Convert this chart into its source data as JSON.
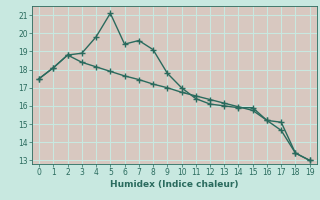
{
  "xlabel": "Humidex (Indice chaleur)",
  "x": [
    0,
    1,
    2,
    3,
    4,
    5,
    6,
    7,
    8,
    9,
    10,
    11,
    12,
    13,
    14,
    15,
    16,
    17,
    18,
    19
  ],
  "line1": [
    17.5,
    18.1,
    18.8,
    18.9,
    19.8,
    21.1,
    19.4,
    19.6,
    19.1,
    17.8,
    17.0,
    16.4,
    16.1,
    16.0,
    15.9,
    15.9,
    15.2,
    15.1,
    13.4,
    13.0
  ],
  "line2": [
    17.5,
    18.1,
    18.8,
    18.4,
    18.15,
    17.9,
    17.65,
    17.45,
    17.2,
    17.0,
    16.75,
    16.55,
    16.35,
    16.15,
    15.95,
    15.75,
    15.2,
    14.65,
    13.4,
    13.0
  ],
  "line_color": "#2a6b5e",
  "bg_color": "#c8e8e0",
  "grid_color": "#c4b8b0",
  "plot_bg": "#dce8e4",
  "ylim": [
    12.8,
    21.5
  ],
  "xlim": [
    -0.5,
    19.5
  ],
  "yticks": [
    13,
    14,
    15,
    16,
    17,
    18,
    19,
    20,
    21
  ],
  "xticks": [
    0,
    1,
    2,
    3,
    4,
    5,
    6,
    7,
    8,
    9,
    10,
    11,
    12,
    13,
    14,
    15,
    16,
    17,
    18,
    19
  ]
}
